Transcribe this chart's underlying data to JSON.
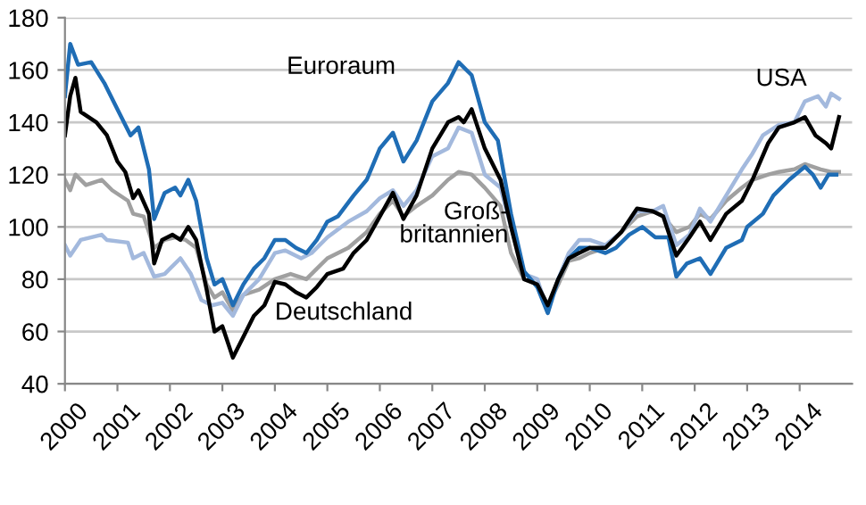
{
  "chart_data": {
    "type": "line",
    "xlim": [
      2000,
      2015
    ],
    "xticks": [
      2000,
      2001,
      2002,
      2003,
      2004,
      2005,
      2006,
      2007,
      2008,
      2009,
      2010,
      2011,
      2012,
      2013,
      2014
    ],
    "ylim": [
      40,
      180
    ],
    "yticks": [
      40,
      60,
      80,
      100,
      120,
      140,
      160,
      180
    ],
    "grid": "y",
    "legend": false,
    "marker": "none",
    "line_style": "solid",
    "series": [
      {
        "name": "Groß-\nbritannien",
        "color": "#a0a0a0",
        "x": [
          2000,
          2000.1,
          2000.2,
          2000.4,
          2000.7,
          2000.9,
          2001.2,
          2001.3,
          2001.5,
          2001.7,
          2001.9,
          2002.1,
          2002.3,
          2002.5,
          2002.7,
          2002.85,
          2003,
          2003.2,
          2003.4,
          2003.7,
          2004,
          2004.3,
          2004.6,
          2004.8,
          2005,
          2005.4,
          2005.75,
          2006,
          2006.25,
          2006.45,
          2006.7,
          2007,
          2007.3,
          2007.5,
          2007.75,
          2008,
          2008.3,
          2008.5,
          2008.75,
          2009,
          2009.2,
          2009.4,
          2009.6,
          2009.8,
          2010,
          2010.3,
          2010.6,
          2010.9,
          2011.2,
          2011.4,
          2011.65,
          2011.9,
          2012.1,
          2012.3,
          2012.6,
          2012.9,
          2013.1,
          2013.4,
          2013.6,
          2013.9,
          2014.1,
          2014.4,
          2014.6,
          2014.75
        ],
        "values": [
          118,
          114,
          120,
          116,
          118,
          114,
          110,
          105,
          104,
          92,
          95,
          96,
          95,
          92,
          78,
          73,
          75,
          68,
          74,
          76,
          80,
          82,
          80,
          84,
          88,
          92,
          98,
          105,
          110,
          104,
          108,
          112,
          118,
          121,
          120,
          115,
          108,
          90,
          80,
          78,
          70,
          78,
          87,
          88,
          90,
          92,
          98,
          104,
          106,
          104,
          98,
          100,
          105,
          103,
          110,
          115,
          118,
          120,
          121,
          122,
          124,
          122,
          121,
          121
        ]
      },
      {
        "name": "USA",
        "color": "#a3b9dd",
        "x": [
          2000,
          2000.1,
          2000.3,
          2000.7,
          2000.8,
          2001.2,
          2001.3,
          2001.5,
          2001.7,
          2001.9,
          2002,
          2002.2,
          2002.4,
          2002.6,
          2002.8,
          2003,
          2003.2,
          2003.4,
          2003.7,
          2004,
          2004.2,
          2004.5,
          2004.7,
          2005,
          2005.4,
          2005.75,
          2006,
          2006.25,
          2006.45,
          2006.7,
          2007,
          2007.3,
          2007.5,
          2007.75,
          2008,
          2008.3,
          2008.5,
          2008.75,
          2009,
          2009.2,
          2009.4,
          2009.6,
          2009.8,
          2010,
          2010.3,
          2010.6,
          2010.9,
          2011.2,
          2011.4,
          2011.65,
          2011.9,
          2012.1,
          2012.3,
          2012.6,
          2012.9,
          2013.1,
          2013.3,
          2013.6,
          2013.9,
          2014.1,
          2014.35,
          2014.5,
          2014.6,
          2014.75
        ],
        "values": [
          93,
          89,
          95,
          97,
          95,
          94,
          88,
          90,
          81,
          82,
          84,
          88,
          82,
          72,
          70,
          71,
          66,
          74,
          80,
          90,
          91,
          88,
          90,
          96,
          102,
          106,
          111,
          114,
          108,
          114,
          127,
          130,
          138,
          136,
          120,
          115,
          100,
          82,
          80,
          68,
          80,
          90,
          95,
          95,
          93,
          98,
          106,
          106,
          108,
          93,
          97,
          107,
          102,
          112,
          122,
          128,
          135,
          139,
          140,
          148,
          150,
          146,
          151,
          149
        ]
      },
      {
        "name": "Euroraum",
        "color": "#1f6db5",
        "x": [
          2000,
          2000.1,
          2000.25,
          2000.5,
          2000.75,
          2001,
          2001.25,
          2001.4,
          2001.6,
          2001.7,
          2001.9,
          2002.1,
          2002.2,
          2002.35,
          2002.5,
          2002.7,
          2002.85,
          2003,
          2003.2,
          2003.4,
          2003.6,
          2003.8,
          2004,
          2004.2,
          2004.4,
          2004.6,
          2004.8,
          2005,
          2005.2,
          2005.5,
          2005.75,
          2006,
          2006.25,
          2006.45,
          2006.7,
          2007,
          2007.3,
          2007.5,
          2007.75,
          2008,
          2008.25,
          2008.5,
          2008.75,
          2009,
          2009.2,
          2009.4,
          2009.6,
          2009.8,
          2010,
          2010.3,
          2010.5,
          2010.75,
          2011,
          2011.25,
          2011.5,
          2011.65,
          2011.85,
          2012.1,
          2012.3,
          2012.6,
          2012.9,
          2013,
          2013.3,
          2013.5,
          2013.8,
          2014.1,
          2014.25,
          2014.4,
          2014.55,
          2014.7
        ],
        "values": [
          150,
          170,
          162,
          163,
          155,
          145,
          135,
          138,
          122,
          103,
          113,
          115,
          112,
          118,
          110,
          88,
          78,
          80,
          70,
          78,
          84,
          88,
          95,
          95,
          92,
          90,
          95,
          102,
          104,
          112,
          118,
          130,
          136,
          125,
          133,
          148,
          155,
          163,
          158,
          140,
          133,
          105,
          83,
          77,
          67,
          80,
          88,
          92,
          92,
          90,
          92,
          97,
          100,
          96,
          96,
          81,
          86,
          88,
          82,
          92,
          95,
          100,
          105,
          112,
          118,
          123,
          120,
          115,
          120,
          120
        ]
      },
      {
        "name": "Deutschland",
        "color": "#000000",
        "x": [
          2000,
          2000.1,
          2000.2,
          2000.3,
          2000.6,
          2000.8,
          2001,
          2001.15,
          2001.3,
          2001.4,
          2001.6,
          2001.7,
          2001.85,
          2002.05,
          2002.2,
          2002.35,
          2002.5,
          2002.7,
          2002.85,
          2003,
          2003.2,
          2003.4,
          2003.6,
          2003.8,
          2004,
          2004.2,
          2004.4,
          2004.6,
          2004.8,
          2005,
          2005.3,
          2005.5,
          2005.75,
          2006,
          2006.25,
          2006.45,
          2006.7,
          2007,
          2007.3,
          2007.5,
          2007.6,
          2007.75,
          2008,
          2008.3,
          2008.5,
          2008.75,
          2009,
          2009.2,
          2009.4,
          2009.6,
          2009.8,
          2010,
          2010.3,
          2010.6,
          2010.9,
          2011.2,
          2011.4,
          2011.65,
          2011.9,
          2012.1,
          2012.3,
          2012.6,
          2012.9,
          2013.1,
          2013.4,
          2013.6,
          2013.9,
          2014.1,
          2014.3,
          2014.5,
          2014.6,
          2014.75
        ],
        "values": [
          135,
          150,
          157,
          144,
          140,
          135,
          125,
          121,
          111,
          114,
          105,
          86,
          95,
          97,
          95,
          100,
          95,
          76,
          60,
          62,
          50,
          58,
          66,
          70,
          79,
          78,
          75,
          73,
          77,
          82,
          84,
          90,
          95,
          104,
          113,
          103,
          112,
          130,
          140,
          142,
          140,
          145,
          130,
          118,
          100,
          80,
          78,
          70,
          80,
          88,
          90,
          92,
          92,
          98,
          107,
          106,
          104,
          89,
          96,
          102,
          95,
          105,
          110,
          118,
          132,
          138,
          140,
          142,
          135,
          132,
          130,
          142
        ]
      }
    ]
  }
}
